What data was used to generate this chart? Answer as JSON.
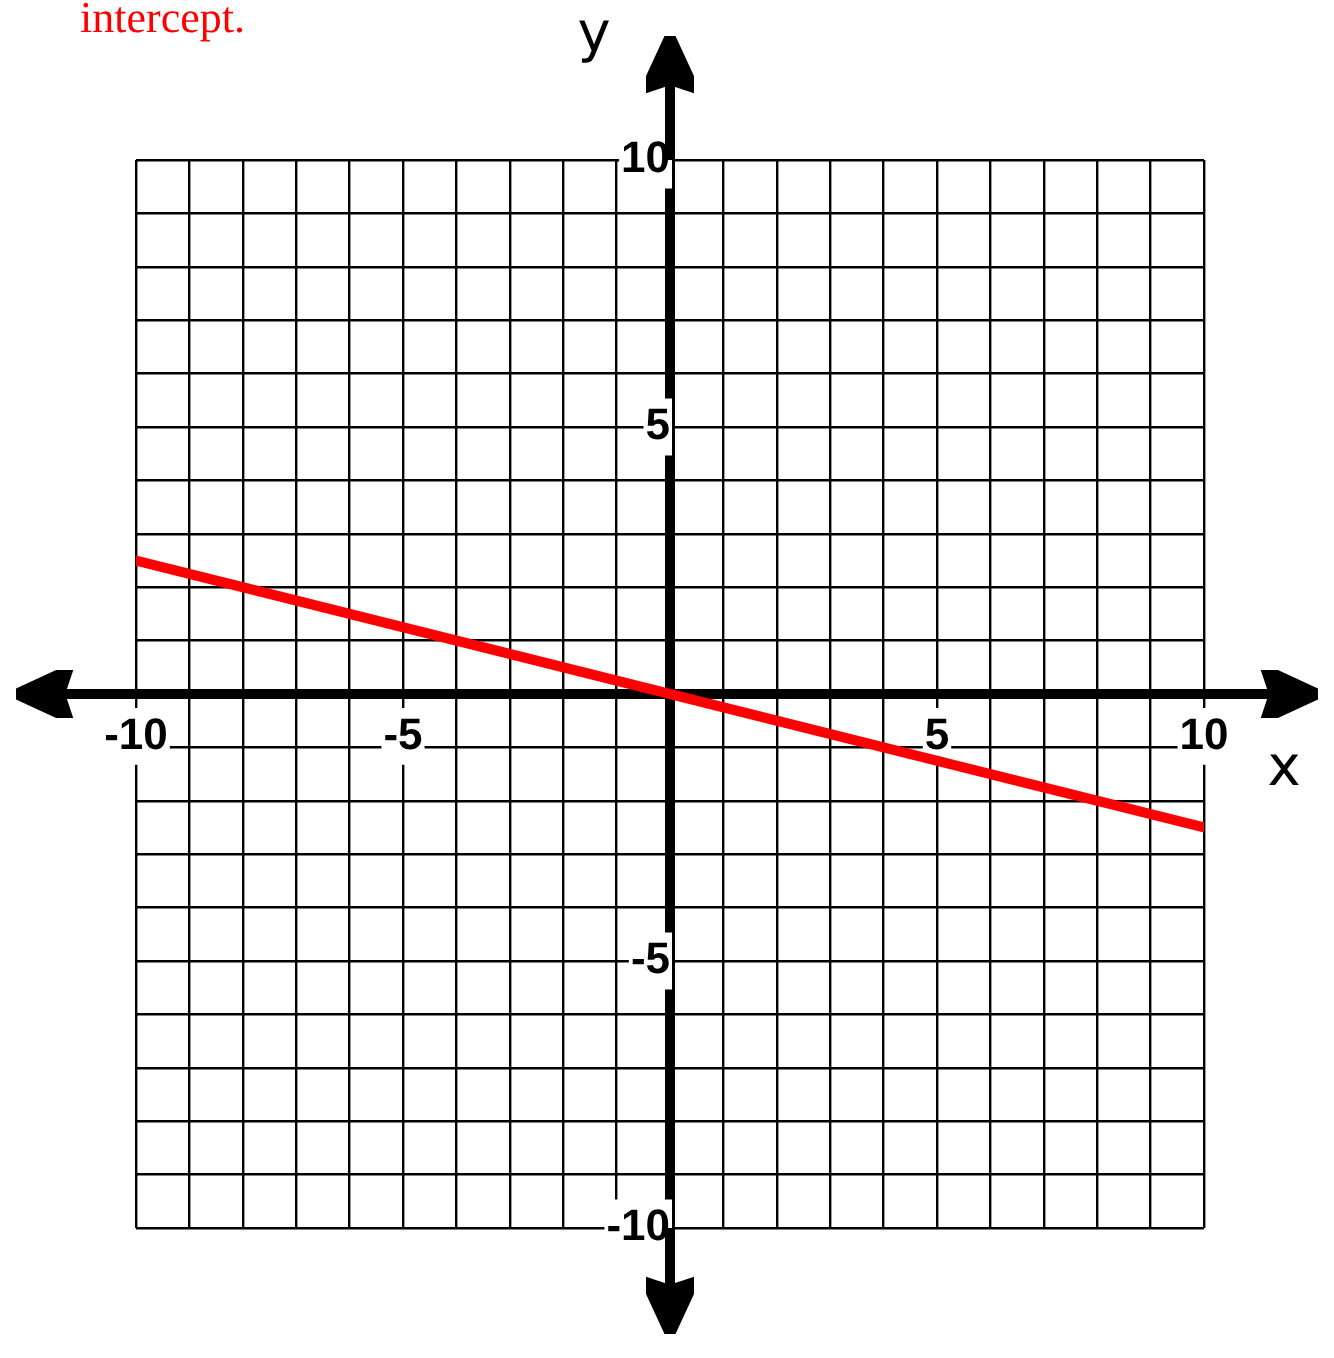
{
  "chart_data": {
    "type": "line",
    "annotations": [
      "intercept."
    ],
    "xlabel": "x",
    "ylabel": "y",
    "x": [
      -10,
      10
    ],
    "series": [
      {
        "color": "#ff0000",
        "values": [
          2.5,
          -2.5
        ]
      }
    ],
    "xlim": [
      -10,
      10
    ],
    "ylim": [
      -10,
      10
    ],
    "xticks": [
      -10,
      {
        "value": -9,
        "label": null
      },
      {
        "value": -8,
        "label": null
      },
      {
        "value": -7,
        "label": null
      },
      {
        "value": -6,
        "label": null
      },
      -5,
      {
        "value": -4,
        "label": null
      },
      {
        "value": -3,
        "label": null
      },
      {
        "value": -2,
        "label": null
      },
      {
        "value": -1,
        "label": null
      },
      {
        "value": 0,
        "label": null
      },
      {
        "value": 1,
        "label": null
      },
      {
        "value": 2,
        "label": null
      },
      {
        "value": 3,
        "label": null
      },
      {
        "value": 4,
        "label": null
      },
      5,
      {
        "value": 6,
        "label": null
      },
      {
        "value": 7,
        "label": null
      },
      {
        "value": 8,
        "label": null
      },
      {
        "value": 9,
        "label": null
      },
      10
    ],
    "yticks": [
      -10,
      {
        "value": -9,
        "label": null
      },
      {
        "value": -8,
        "label": null
      },
      {
        "value": -7,
        "label": null
      },
      {
        "value": -6,
        "label": null
      },
      -5,
      {
        "value": -4,
        "label": null
      },
      {
        "value": -3,
        "label": null
      },
      {
        "value": -2,
        "label": null
      },
      {
        "value": -1,
        "label": null
      },
      {
        "value": 0,
        "label": null
      },
      {
        "value": 1,
        "label": null
      },
      {
        "value": 2,
        "label": null
      },
      {
        "value": 3,
        "label": null
      },
      {
        "value": 4,
        "label": null
      },
      5,
      {
        "value": 6,
        "label": null
      },
      {
        "value": 7,
        "label": null
      },
      {
        "value": 8,
        "label": null
      },
      {
        "value": 9,
        "label": null
      },
      10
    ],
    "grid": true,
    "legend": false,
    "marker": "none",
    "line_style": "solid"
  }
}
